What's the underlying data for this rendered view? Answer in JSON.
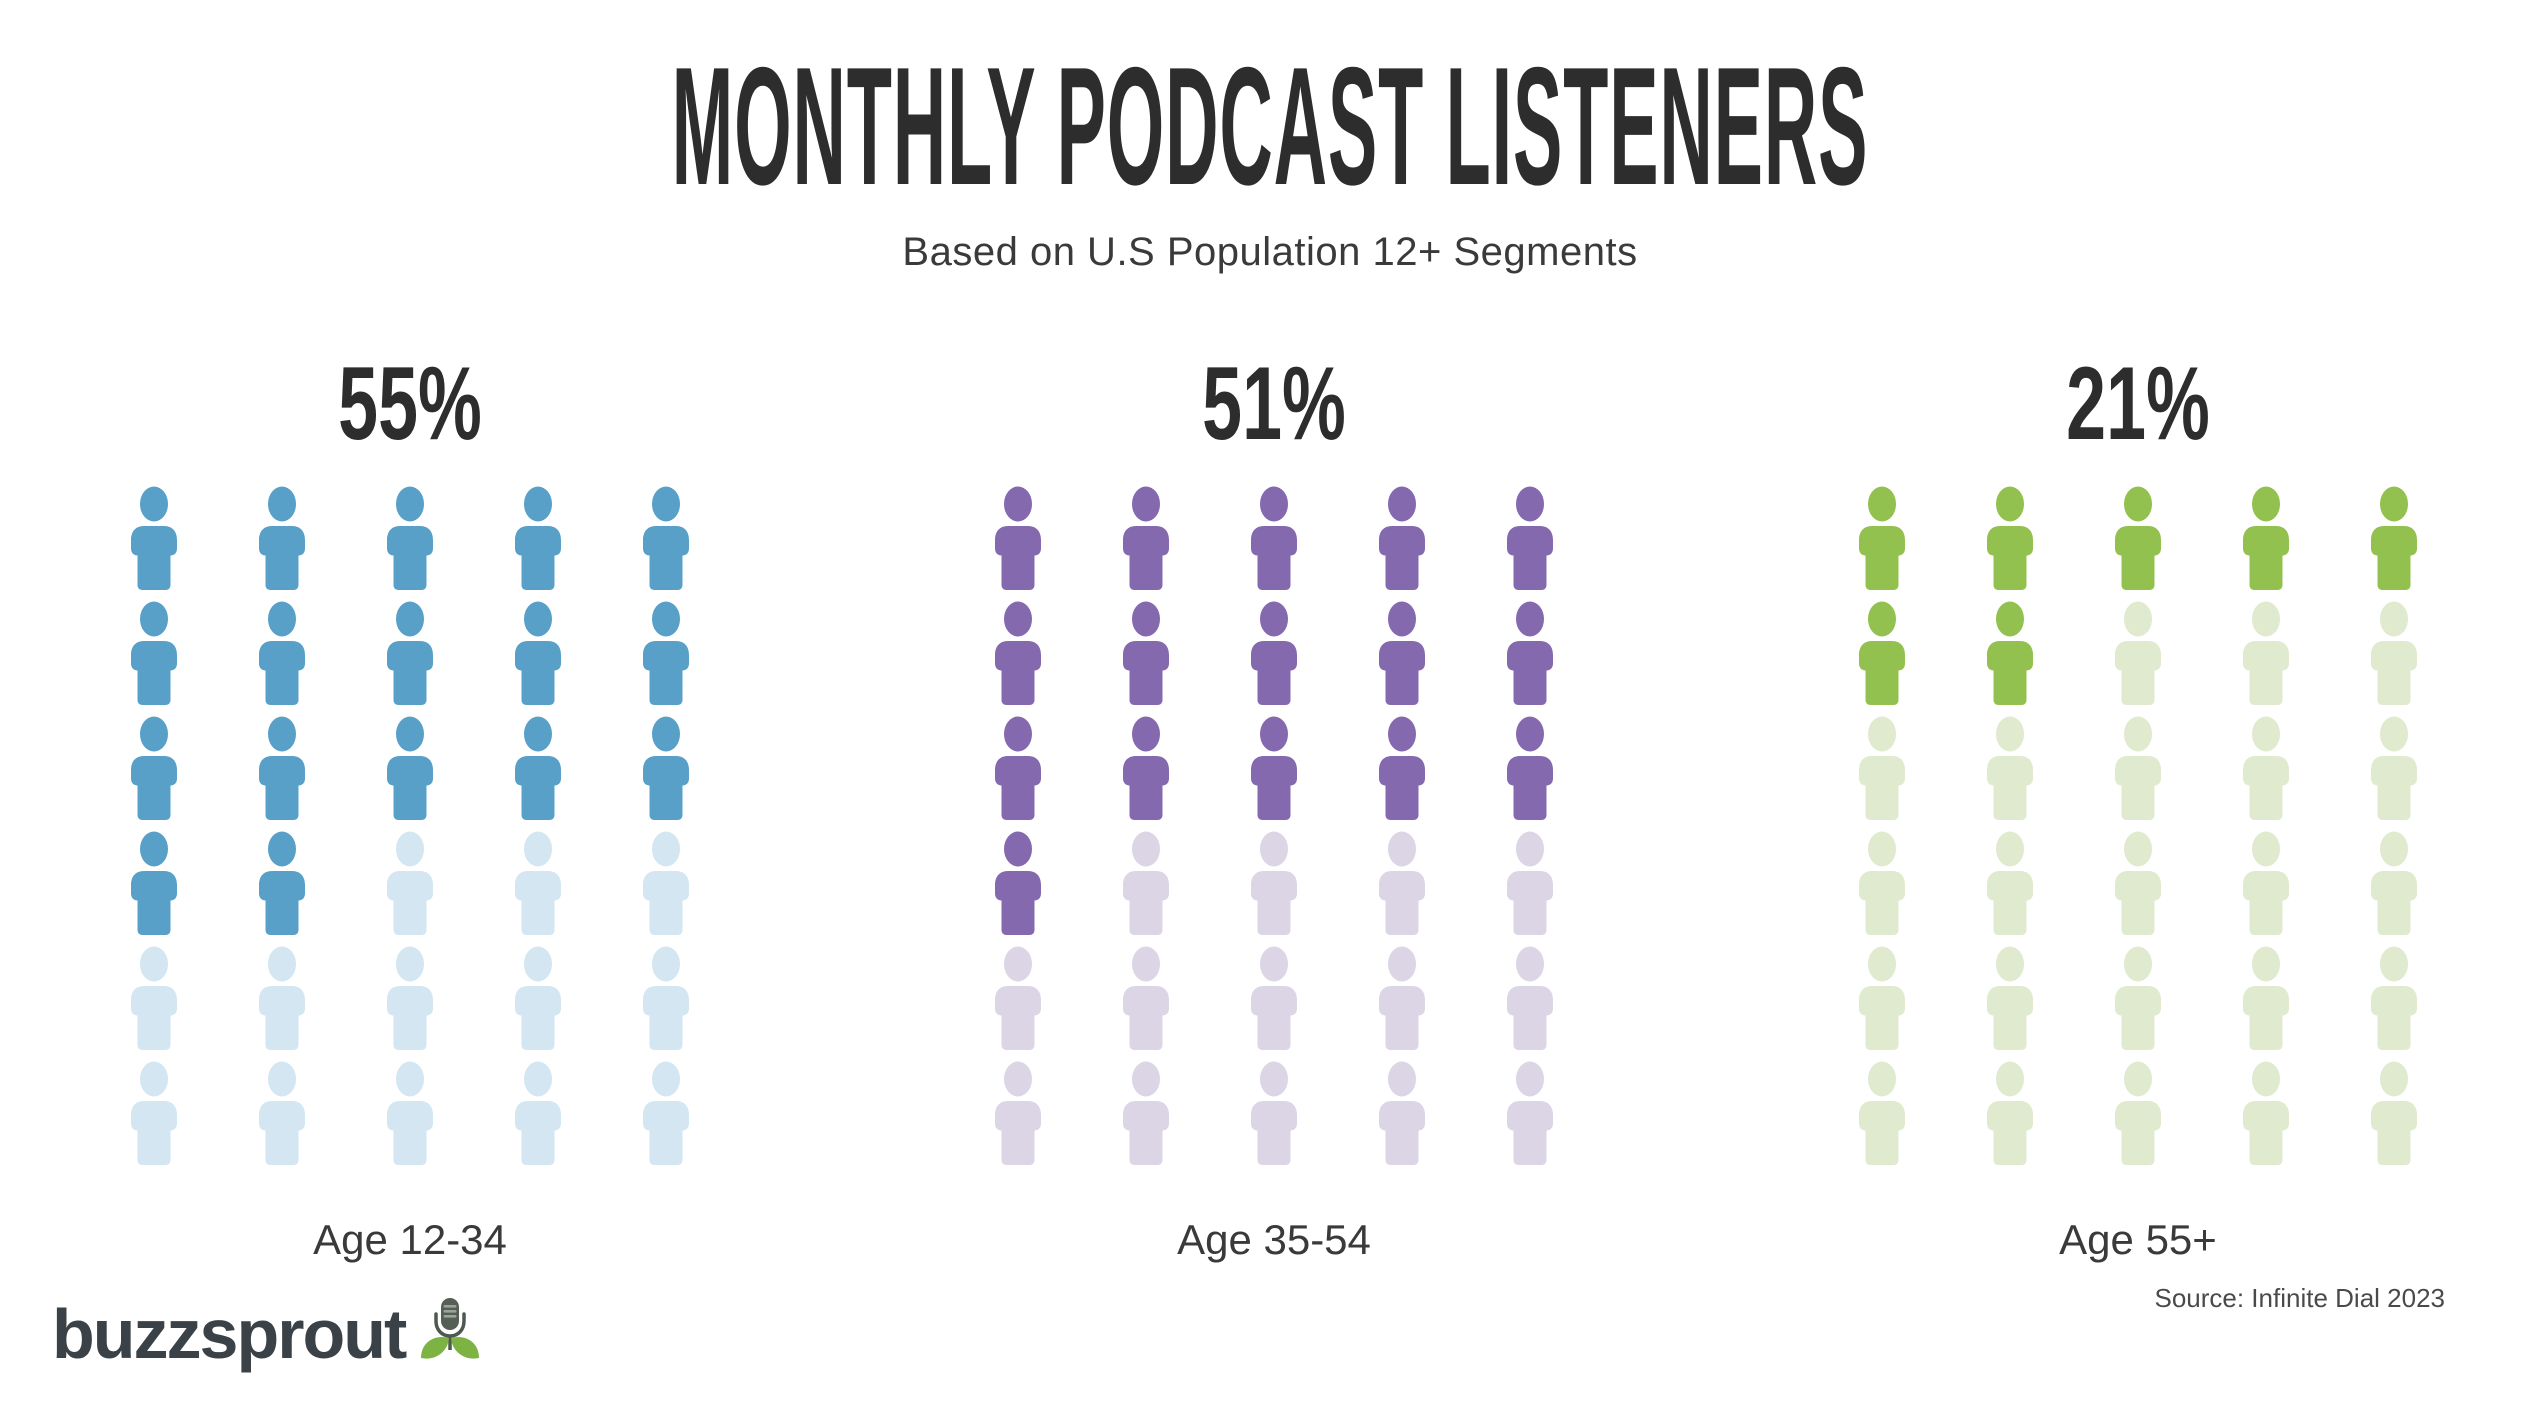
{
  "title": "MONTHLY PODCAST LISTENERS",
  "subtitle": "Based on U.S Population 12+ Segments",
  "source_note": "Source: Infinite Dial 2023",
  "logo": {
    "text": "buzzsprout",
    "icon": "microphone-sprout-icon",
    "text_color": "#3B4247",
    "leaf_color": "#7CB342",
    "mic_color": "#555F56"
  },
  "colors": {
    "heading": "#2D2D2D",
    "label": "#3A3A3A",
    "background": "#FFFFFF"
  },
  "chart_data": {
    "type": "pictogram",
    "title": "MONTHLY PODCAST LISTENERS",
    "subtitle": "Based on U.S Population 12+ Segments",
    "legend_position": "none",
    "grid": {
      "columns": 5,
      "rows": 6,
      "icons_per_group": 30,
      "percent_per_icon": 3.33,
      "fill_order": "row-major"
    },
    "groups": [
      {
        "label": "Age 12-34",
        "percent_label": "55%",
        "value_percent": 55,
        "filled_icons": 17,
        "fill_color": "#58A0C8",
        "faded_color": "#D3E6F1"
      },
      {
        "label": "Age 35-54",
        "percent_label": "51%",
        "value_percent": 51,
        "filled_icons": 16,
        "fill_color": "#8569AE",
        "faded_color": "#DBD5E6"
      },
      {
        "label": "Age 55+",
        "percent_label": "21%",
        "value_percent": 21,
        "filled_icons": 7,
        "fill_color": "#93C14F",
        "faded_color": "#E0EACF"
      }
    ]
  }
}
